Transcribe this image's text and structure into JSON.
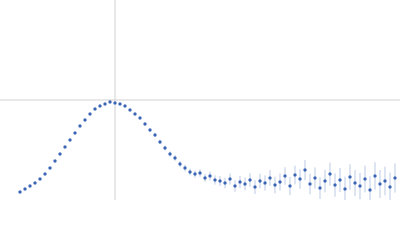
{
  "chart_data": {
    "type": "scatter",
    "color": "#3a64b4",
    "error_color": "#9fb3d9",
    "xlim": [
      0,
      4
    ],
    "ylim": [
      0,
      2
    ],
    "hline": 1,
    "vline": 1.15,
    "x": [
      0.2,
      0.25,
      0.3,
      0.35,
      0.4,
      0.45,
      0.5,
      0.55,
      0.6,
      0.65,
      0.7,
      0.75,
      0.8,
      0.85,
      0.9,
      0.95,
      1.0,
      1.05,
      1.1,
      1.15,
      1.2,
      1.25,
      1.3,
      1.35,
      1.4,
      1.45,
      1.5,
      1.55,
      1.6,
      1.65,
      1.7,
      1.75,
      1.8,
      1.85,
      1.9,
      1.95,
      2.0,
      2.05,
      2.1,
      2.15,
      2.2,
      2.25,
      2.3,
      2.35,
      2.4,
      2.45,
      2.5,
      2.55,
      2.6,
      2.65,
      2.7,
      2.75,
      2.8,
      2.85,
      2.9,
      2.95,
      3.0,
      3.05,
      3.1,
      3.15,
      3.2,
      3.25,
      3.3,
      3.35,
      3.4,
      3.45,
      3.5,
      3.55,
      3.6,
      3.65,
      3.7,
      3.75,
      3.8,
      3.85,
      3.9,
      3.95
    ],
    "values": [
      0.08,
      0.11,
      0.14,
      0.17,
      0.21,
      0.26,
      0.32,
      0.39,
      0.46,
      0.53,
      0.6,
      0.67,
      0.74,
      0.8,
      0.86,
      0.91,
      0.94,
      0.96,
      0.98,
      0.97,
      0.96,
      0.94,
      0.9,
      0.86,
      0.82,
      0.76,
      0.7,
      0.65,
      0.58,
      0.52,
      0.46,
      0.42,
      0.36,
      0.32,
      0.28,
      0.26,
      0.27,
      0.22,
      0.24,
      0.2,
      0.19,
      0.17,
      0.21,
      0.14,
      0.18,
      0.16,
      0.2,
      0.13,
      0.19,
      0.17,
      0.22,
      0.15,
      0.18,
      0.24,
      0.14,
      0.25,
      0.21,
      0.3,
      0.16,
      0.22,
      0.12,
      0.19,
      0.26,
      0.15,
      0.2,
      0.11,
      0.23,
      0.17,
      0.14,
      0.21,
      0.1,
      0.24,
      0.16,
      0.19,
      0.13,
      0.22
    ],
    "errors": [
      0.005,
      0.005,
      0.005,
      0.005,
      0.005,
      0.005,
      0.005,
      0.005,
      0.005,
      0.005,
      0.005,
      0.005,
      0.005,
      0.005,
      0.005,
      0.005,
      0.005,
      0.006,
      0.007,
      0.008,
      0.009,
      0.01,
      0.011,
      0.012,
      0.014,
      0.016,
      0.018,
      0.02,
      0.022,
      0.024,
      0.026,
      0.028,
      0.03,
      0.032,
      0.034,
      0.036,
      0.038,
      0.04,
      0.043,
      0.046,
      0.049,
      0.052,
      0.055,
      0.058,
      0.061,
      0.064,
      0.067,
      0.07,
      0.073,
      0.076,
      0.079,
      0.082,
      0.085,
      0.088,
      0.091,
      0.094,
      0.097,
      0.1,
      0.103,
      0.106,
      0.109,
      0.112,
      0.115,
      0.118,
      0.121,
      0.124,
      0.127,
      0.13,
      0.132,
      0.134,
      0.136,
      0.138,
      0.14,
      0.142,
      0.144,
      0.146
    ]
  }
}
